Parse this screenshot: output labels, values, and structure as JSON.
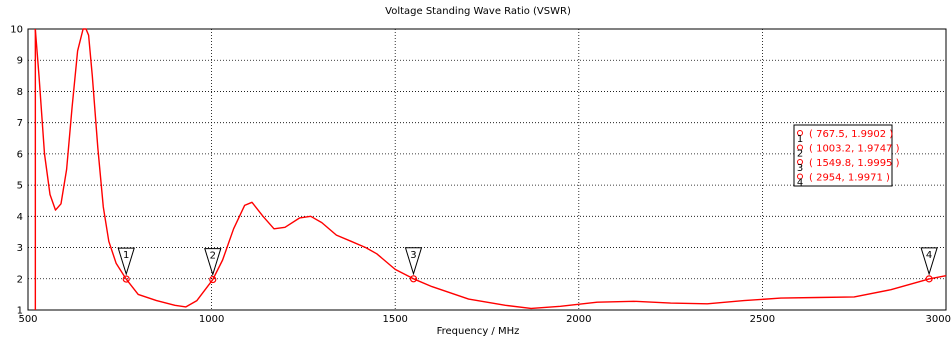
{
  "chart_data": {
    "type": "line",
    "title": "Voltage Standing Wave Ratio (VSWR)",
    "xlabel": "Frequency / MHz",
    "ylabel": "",
    "xlim": [
      500,
      3000
    ],
    "ylim": [
      1,
      10
    ],
    "x_ticks": [
      500,
      1000,
      1500,
      2000,
      2500,
      3000
    ],
    "y_ticks": [
      1,
      2,
      3,
      4,
      5,
      6,
      7,
      8,
      9,
      10
    ],
    "grid": true,
    "series": [
      {
        "name": "",
        "color": "#ff0000",
        "x": [
          520,
          530,
          545,
          560,
          575,
          590,
          605,
          620,
          635,
          650,
          658,
          665,
          675,
          690,
          705,
          720,
          740,
          767.5,
          800,
          850,
          900,
          930,
          960,
          1003.2,
          1030,
          1060,
          1090,
          1110,
          1140,
          1170,
          1200,
          1240,
          1270,
          1300,
          1340,
          1380,
          1420,
          1450,
          1500,
          1549.8,
          1600,
          1700,
          1800,
          1870,
          1950,
          2050,
          2150,
          2250,
          2350,
          2450,
          2550,
          2650,
          2750,
          2850,
          2954,
          3000
        ],
        "y": [
          10,
          8.5,
          6,
          4.7,
          4.2,
          4.4,
          5.5,
          7.5,
          9.3,
          10,
          10,
          9.8,
          8.5,
          6.2,
          4.3,
          3.2,
          2.5,
          1.9902,
          1.5,
          1.3,
          1.15,
          1.1,
          1.3,
          1.9747,
          2.6,
          3.6,
          4.35,
          4.45,
          4.0,
          3.6,
          3.65,
          3.95,
          4.0,
          3.8,
          3.4,
          3.2,
          3.0,
          2.8,
          2.3,
          1.9995,
          1.75,
          1.35,
          1.15,
          1.05,
          1.12,
          1.25,
          1.28,
          1.22,
          1.2,
          1.3,
          1.38,
          1.4,
          1.42,
          1.65,
          1.9971,
          2.1
        ]
      }
    ],
    "markers": [
      {
        "id": "1",
        "x": 767.5,
        "y": 1.9902,
        "label": "( 767.5, 1.9902 )"
      },
      {
        "id": "2",
        "x": 1003.2,
        "y": 1.9747,
        "label": "( 1003.2, 1.9747 )"
      },
      {
        "id": "3",
        "x": 1549.8,
        "y": 1.9995,
        "label": "( 1549.8, 1.9995 )"
      },
      {
        "id": "4",
        "x": 2954,
        "y": 1.9971,
        "label": "( 2954, 1.9971 )"
      }
    ],
    "legend_placement": "right"
  },
  "colors": {
    "curve": "#ff0000",
    "grid": "#000000",
    "axis": "#000000"
  }
}
